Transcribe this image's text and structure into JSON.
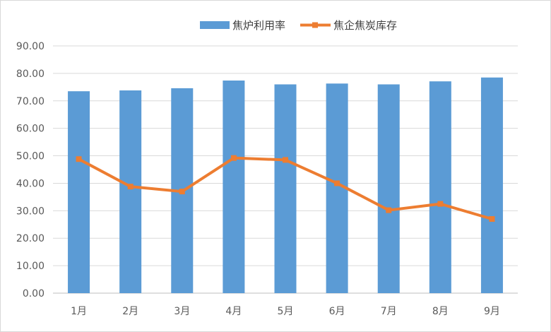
{
  "chart_data": {
    "type": "bar",
    "categories": [
      "1月",
      "2月",
      "3月",
      "4月",
      "5月",
      "6月",
      "7月",
      "8月",
      "9月"
    ],
    "series": [
      {
        "name": "焦炉利用率",
        "type": "bar",
        "color": "#5B9BD5",
        "values": [
          73.5,
          73.8,
          74.6,
          77.4,
          76.0,
          76.3,
          76.0,
          77.1,
          78.5
        ]
      },
      {
        "name": "焦企焦炭库存",
        "type": "line",
        "color": "#ED7D31",
        "values": [
          48.8,
          38.8,
          37.0,
          49.2,
          48.5,
          40.0,
          30.2,
          32.5,
          27.0
        ]
      }
    ],
    "ylim": [
      0,
      90
    ],
    "yticks": [
      "0.00",
      "10.00",
      "20.00",
      "30.00",
      "40.00",
      "50.00",
      "60.00",
      "70.00",
      "80.00",
      "90.00"
    ],
    "grid": true,
    "legend_position": "top"
  }
}
